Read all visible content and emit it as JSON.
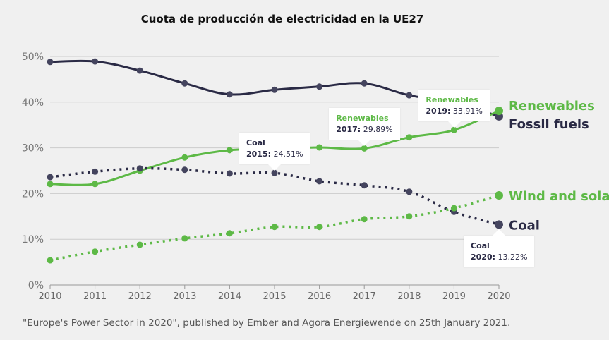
{
  "chart_data": {
    "type": "line",
    "title": "Cuota de producción de electricidad en la UE27",
    "source": "\"Europe's Power Sector in 2020\", published by Ember and Agora Energiewende on 25th January 2021.",
    "xlabel": "",
    "ylabel": "",
    "x": [
      2010,
      2011,
      2012,
      2013,
      2014,
      2015,
      2016,
      2017,
      2018,
      2019,
      2020
    ],
    "xticks": [
      "2010",
      "2011",
      "2012",
      "2013",
      "2014",
      "2015",
      "2016",
      "2017",
      "2018",
      "2019",
      "2020"
    ],
    "ylim": [
      0,
      50
    ],
    "yticks": [
      {
        "v": 0,
        "label": "0%"
      },
      {
        "v": 10,
        "label": "10%"
      },
      {
        "v": 20,
        "label": "20%"
      },
      {
        "v": 30,
        "label": "30%"
      },
      {
        "v": 40,
        "label": "40%"
      },
      {
        "v": 50,
        "label": "50%"
      }
    ],
    "grid": true,
    "series": [
      {
        "name": "Fossil fuels",
        "color": "#2a2a45",
        "style": "solid",
        "values": [
          48.8,
          48.9,
          46.9,
          44.1,
          41.7,
          42.7,
          43.4,
          44.1,
          41.5,
          39.9,
          36.9
        ]
      },
      {
        "name": "Renewables",
        "color": "#5db946",
        "style": "solid",
        "values": [
          22.1,
          22.1,
          25.0,
          27.9,
          29.5,
          29.8,
          30.1,
          29.89,
          32.3,
          33.91,
          38.1
        ]
      },
      {
        "name": "Coal",
        "color": "#2a2a45",
        "style": "dotted",
        "values": [
          23.6,
          24.8,
          25.5,
          25.2,
          24.4,
          24.51,
          22.7,
          21.8,
          20.4,
          16.0,
          13.22
        ]
      },
      {
        "name": "Wind and solar",
        "color": "#5db946",
        "style": "dotted",
        "values": [
          5.4,
          7.3,
          8.8,
          10.2,
          11.3,
          12.7,
          12.7,
          14.4,
          15.0,
          16.8,
          19.6
        ]
      }
    ],
    "end_labels": [
      {
        "series": 1,
        "text": "Renewables",
        "offset": -8
      },
      {
        "series": 0,
        "text": "Fossil fuels",
        "offset": 10
      },
      {
        "series": 3,
        "text": "Wind and solar",
        "offset": 0
      },
      {
        "series": 2,
        "text": "Coal",
        "offset": 0
      }
    ],
    "tooltips": [
      {
        "series": 2,
        "year_index": 5,
        "name": "Coal",
        "year": "2015:",
        "value": "24.51%",
        "placement": "above"
      },
      {
        "series": 1,
        "year_index": 7,
        "name": "Renewables",
        "year": "2017:",
        "value": "29.89%",
        "placement": "above"
      },
      {
        "series": 1,
        "year_index": 9,
        "name": "Renewables",
        "year": "2019:",
        "value": "33.91%",
        "placement": "above"
      },
      {
        "series": 2,
        "year_index": 10,
        "name": "Coal",
        "year": "2020:",
        "value": "13.22%",
        "placement": "below"
      }
    ]
  }
}
